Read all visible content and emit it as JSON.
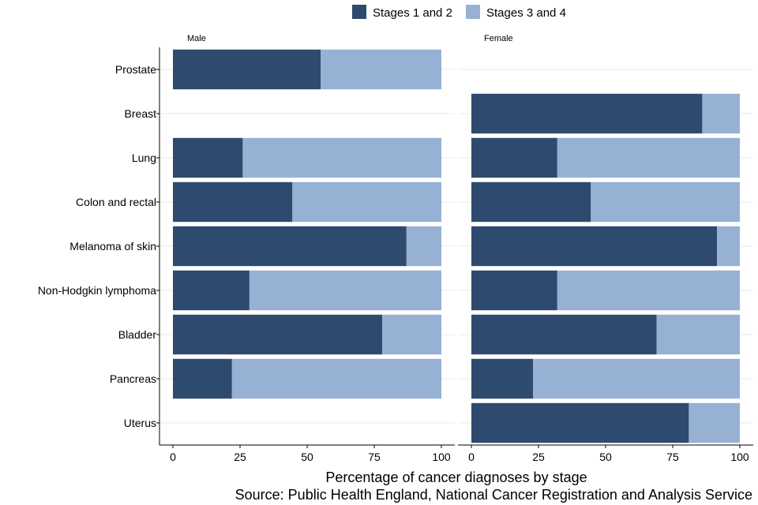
{
  "chart_data": {
    "type": "bar",
    "orientation": "horizontal",
    "stacked": true,
    "categories": [
      "Prostate",
      "Breast",
      "Lung",
      "Colon and rectal",
      "Melanoma of skin",
      "Non-Hodgkin lymphoma",
      "Bladder",
      "Pancreas",
      "Uterus"
    ],
    "legend": {
      "placement": "top",
      "entries": [
        {
          "name": "Stages 1 and 2",
          "color": "#2e4a6e"
        },
        {
          "name": "Stages 3 and 4",
          "color": "#97b1d5"
        }
      ]
    },
    "panels": [
      {
        "name": "Male",
        "series": [
          {
            "name": "Stages 1 and 2",
            "values": [
              55,
              null,
              26,
              44.5,
              87,
              28.5,
              78,
              22,
              null
            ]
          },
          {
            "name": "Stages 3 and 4",
            "values": [
              45,
              null,
              74,
              55.5,
              13,
              71.5,
              22,
              78,
              null
            ]
          }
        ]
      },
      {
        "name": "Female",
        "series": [
          {
            "name": "Stages 1 and 2",
            "values": [
              null,
              86,
              32,
              44.5,
              91.5,
              32,
              69,
              23,
              81
            ]
          },
          {
            "name": "Stages 3 and 4",
            "values": [
              null,
              14,
              68,
              55.5,
              8.5,
              68,
              31,
              77,
              19
            ]
          }
        ]
      }
    ],
    "xlim": [
      0,
      100
    ],
    "xticks": [
      0,
      25,
      50,
      75,
      100
    ],
    "xlabel": "Percentage of cancer diagnoses by stage",
    "grid": true
  },
  "caption": "Source: Public Health England, National Cancer Registration and Analysis Service"
}
